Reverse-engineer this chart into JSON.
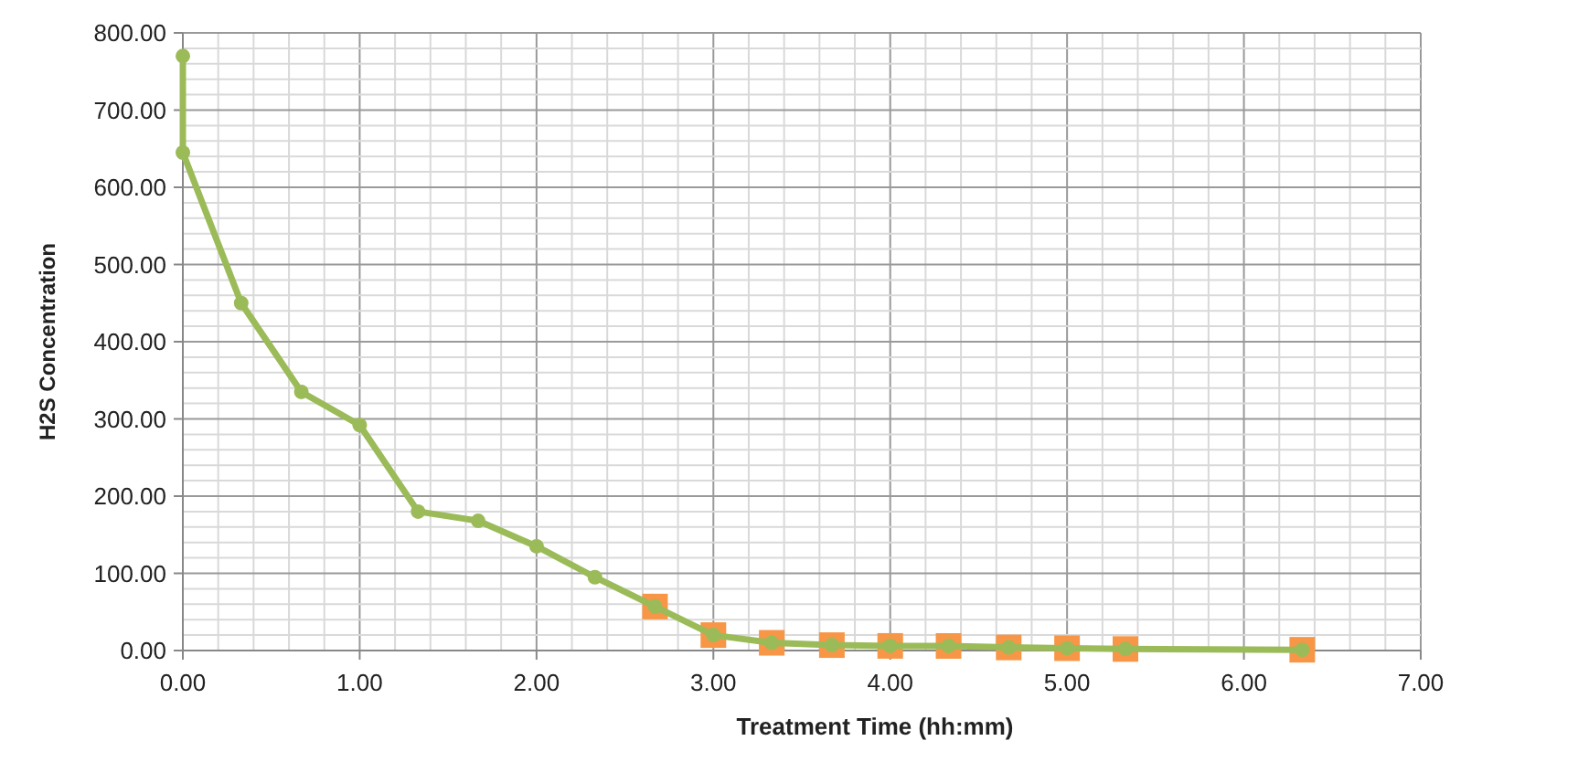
{
  "chart_data": {
    "type": "line",
    "xlabel": "Treatment Time (hh:mm)",
    "ylabel": "H2S Concentration",
    "xlim": [
      0,
      7
    ],
    "ylim": [
      0,
      800
    ],
    "xticks": [
      {
        "value": 0,
        "label": "0.00"
      },
      {
        "value": 0.2,
        "label": null
      },
      {
        "value": 0.4,
        "label": null
      },
      {
        "value": 0.6,
        "label": null
      },
      {
        "value": 0.8,
        "label": null
      },
      {
        "value": 1,
        "label": "1.00"
      },
      {
        "value": 1.2,
        "label": null
      },
      {
        "value": 1.4,
        "label": null
      },
      {
        "value": 1.6,
        "label": null
      },
      {
        "value": 1.8,
        "label": null
      },
      {
        "value": 2,
        "label": "2.00"
      },
      {
        "value": 2.2,
        "label": null
      },
      {
        "value": 2.4,
        "label": null
      },
      {
        "value": 2.6,
        "label": null
      },
      {
        "value": 2.8,
        "label": null
      },
      {
        "value": 3,
        "label": "3.00"
      },
      {
        "value": 3.2,
        "label": null
      },
      {
        "value": 3.4,
        "label": null
      },
      {
        "value": 3.6,
        "label": null
      },
      {
        "value": 3.8,
        "label": null
      },
      {
        "value": 4,
        "label": "4.00"
      },
      {
        "value": 4.2,
        "label": null
      },
      {
        "value": 4.4,
        "label": null
      },
      {
        "value": 4.6,
        "label": null
      },
      {
        "value": 4.8,
        "label": null
      },
      {
        "value": 5,
        "label": "5.00"
      },
      {
        "value": 5.2,
        "label": null
      },
      {
        "value": 5.4,
        "label": null
      },
      {
        "value": 5.6,
        "label": null
      },
      {
        "value": 5.8,
        "label": null
      },
      {
        "value": 6,
        "label": "6.00"
      },
      {
        "value": 6.2,
        "label": null
      },
      {
        "value": 6.4,
        "label": null
      },
      {
        "value": 6.6,
        "label": null
      },
      {
        "value": 6.8,
        "label": null
      },
      {
        "value": 7,
        "label": "7.00"
      }
    ],
    "yticks": [
      {
        "value": 0,
        "label": "0.00"
      },
      {
        "value": 20,
        "label": null
      },
      {
        "value": 40,
        "label": null
      },
      {
        "value": 60,
        "label": null
      },
      {
        "value": 80,
        "label": null
      },
      {
        "value": 100,
        "label": "100.00"
      },
      {
        "value": 120,
        "label": null
      },
      {
        "value": 140,
        "label": null
      },
      {
        "value": 160,
        "label": null
      },
      {
        "value": 180,
        "label": null
      },
      {
        "value": 200,
        "label": "200.00"
      },
      {
        "value": 220,
        "label": null
      },
      {
        "value": 240,
        "label": null
      },
      {
        "value": 260,
        "label": null
      },
      {
        "value": 280,
        "label": null
      },
      {
        "value": 300,
        "label": "300.00"
      },
      {
        "value": 320,
        "label": null
      },
      {
        "value": 340,
        "label": null
      },
      {
        "value": 360,
        "label": null
      },
      {
        "value": 380,
        "label": null
      },
      {
        "value": 400,
        "label": "400.00"
      },
      {
        "value": 420,
        "label": null
      },
      {
        "value": 440,
        "label": null
      },
      {
        "value": 460,
        "label": null
      },
      {
        "value": 480,
        "label": null
      },
      {
        "value": 500,
        "label": "500.00"
      },
      {
        "value": 520,
        "label": null
      },
      {
        "value": 540,
        "label": null
      },
      {
        "value": 560,
        "label": null
      },
      {
        "value": 580,
        "label": null
      },
      {
        "value": 600,
        "label": "600.00"
      },
      {
        "value": 620,
        "label": null
      },
      {
        "value": 640,
        "label": null
      },
      {
        "value": 660,
        "label": null
      },
      {
        "value": 680,
        "label": null
      },
      {
        "value": 700,
        "label": "700.00"
      },
      {
        "value": 720,
        "label": null
      },
      {
        "value": 740,
        "label": null
      },
      {
        "value": 760,
        "label": null
      },
      {
        "value": 780,
        "label": null
      },
      {
        "value": 800,
        "label": "800.00"
      }
    ],
    "grid": true,
    "series": [
      {
        "type": "scatter",
        "marker": "square",
        "color": "#f79646",
        "x": [
          2.67,
          3,
          3.33,
          3.67,
          4,
          4.33,
          4.67,
          5,
          5.33,
          6.33
        ],
        "values": [
          57,
          20,
          10,
          7,
          6,
          6,
          4,
          3,
          2,
          1
        ]
      },
      {
        "marker": "circle",
        "color": "#9bbb59",
        "x": [
          0,
          0,
          0.33,
          0.67,
          1,
          1.33,
          1.67,
          2,
          2.33,
          2.67,
          3,
          3.33,
          3.67,
          4,
          4.33,
          4.67,
          5,
          5.33,
          6.33
        ],
        "values": [
          770,
          645,
          450,
          335,
          292,
          180,
          168,
          135,
          95,
          57,
          20,
          10,
          7,
          6,
          6,
          4,
          3,
          2,
          1
        ]
      }
    ]
  }
}
